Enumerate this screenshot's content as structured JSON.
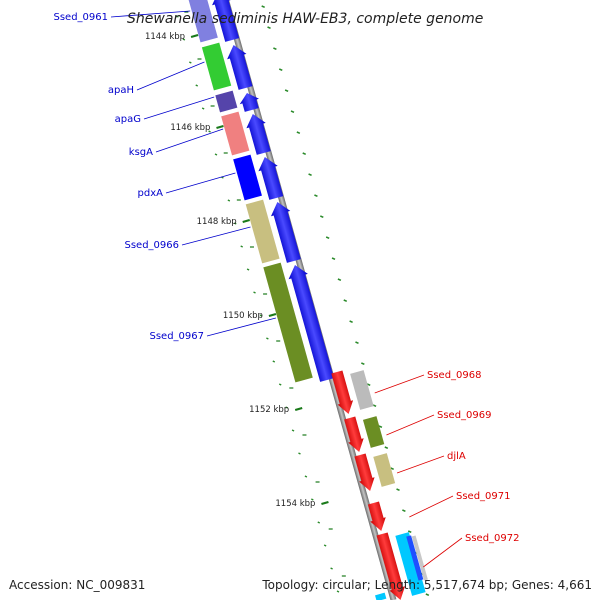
{
  "title": "Shewanella sediminis HAW-EB3, complete genome",
  "footer": {
    "accession": "Accession: NC_009831",
    "topology": "Topology: circular; Length: 5,517,674 bp; Genes: 4,661"
  },
  "colors": {
    "reverse_label": "#0000cc",
    "forward_label": "#dd0000",
    "backbone": "#8a8a8a",
    "kbp_tick": "#1a7a1a",
    "gc_dots": "#2a8a2a"
  },
  "kbp_ticks": [
    "1144 kbp",
    "1146 kbp",
    "1148 kbp",
    "1150 kbp",
    "1152 kbp",
    "1154 kbp"
  ],
  "reverse_genes": [
    {
      "label": "Ssed_0961",
      "cog_color": "#8080e0"
    },
    {
      "label": "apaH",
      "cog_color": "#33cc33"
    },
    {
      "label": "apaG",
      "cog_color": "#5544aa"
    },
    {
      "label": "ksgA",
      "cog_color": "#f08080"
    },
    {
      "label": "pdxA",
      "cog_color": "#0000ff"
    },
    {
      "label": "Ssed_0966",
      "cog_color": "#c8bf80"
    },
    {
      "label": "Ssed_0967",
      "cog_color": "#6b8e23"
    }
  ],
  "forward_genes": [
    {
      "label": "Ssed_0968",
      "cog_color": "#bbbbbb"
    },
    {
      "label": "Ssed_0969",
      "cog_color": "#6b8e23"
    },
    {
      "label": "djlA",
      "cog_color": "#c8bf80"
    },
    {
      "label": "Ssed_0971",
      "cog_color": "#ffffff"
    },
    {
      "label": "Ssed_0972",
      "cog_color": "#00c8ff"
    }
  ]
}
